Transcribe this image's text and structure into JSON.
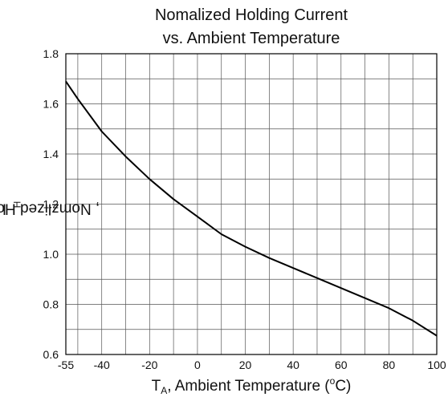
{
  "chart_data": {
    "type": "line",
    "title_line1": "Nomalized Holding Current",
    "title_line2": "vs. Ambient Temperature",
    "xlabel": {
      "sym": "T",
      "sub": "A",
      "rest": ", Ambient Temperature (",
      "sup": "o",
      "end": "C)"
    },
    "ylabel": {
      "sym": "I",
      "sub": "H",
      "rest": ", Nomzlized Holding Current"
    },
    "xlim": [
      -55,
      100
    ],
    "ylim": [
      0.6,
      1.8
    ],
    "x_ticks": [
      -55,
      -40,
      -20,
      0,
      20,
      40,
      60,
      80,
      100
    ],
    "y_ticks": [
      0.6,
      0.8,
      1.0,
      1.2,
      1.4,
      1.6,
      1.8
    ],
    "y_tick_labels": [
      "0.6",
      "0.8",
      "1.0",
      "1.2",
      "1.4",
      "1.6",
      "1.8"
    ],
    "x_grid_step": 10,
    "y_grid_step": 0.1,
    "grid": true,
    "series": [
      {
        "x": [
          -55,
          -50,
          -40,
          -30,
          -20,
          -10,
          0,
          10,
          20,
          30,
          40,
          50,
          60,
          70,
          80,
          90,
          100
        ],
        "y": [
          1.69,
          1.62,
          1.49,
          1.39,
          1.3,
          1.22,
          1.15,
          1.08,
          1.03,
          0.985,
          0.945,
          0.905,
          0.865,
          0.825,
          0.785,
          0.735,
          0.675
        ]
      }
    ],
    "color": "#000000"
  }
}
